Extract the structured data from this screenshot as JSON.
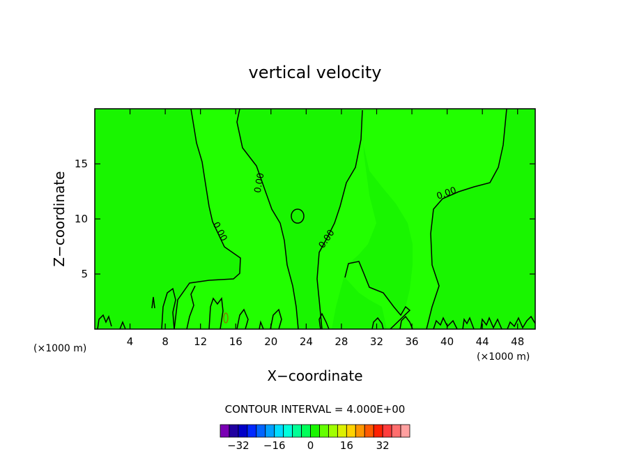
{
  "chart_data": {
    "type": "contour",
    "title": "vertical velocity",
    "xlabel": "X−coordinate",
    "ylabel": "Z−coordinate",
    "x_unit_left": "(×1000 m)",
    "x_unit_right": "(×1000 m)",
    "xlim": [
      0,
      50
    ],
    "ylim": [
      0,
      20
    ],
    "x_ticks": [
      "4",
      "8",
      "12",
      "16",
      "20",
      "24",
      "28",
      "32",
      "36",
      "40",
      "44",
      "48"
    ],
    "y_ticks": [
      "5",
      "10",
      "15"
    ],
    "background_fill_color": "#19f500",
    "positive_region_fill_color": "#22ff00",
    "contour_line_color": "#000000",
    "zero_contour_label": "0.00",
    "contour_interval_text": "CONTOUR INTERVAL = 4.000E+00",
    "colorbar": {
      "colors": [
        "#7a00b4",
        "#2000a0",
        "#0000c8",
        "#0028ff",
        "#0064ff",
        "#00a0ff",
        "#00dcff",
        "#00ffdc",
        "#00ff96",
        "#00ff5a",
        "#19f500",
        "#64ff00",
        "#a0ff00",
        "#dcf000",
        "#ffd200",
        "#ff9600",
        "#ff5a00",
        "#ff2000",
        "#ff3c3c",
        "#ff6e6e",
        "#ffa0a0"
      ],
      "tick_labels": [
        "−32",
        "−16",
        "0",
        "16",
        "32"
      ]
    }
  }
}
